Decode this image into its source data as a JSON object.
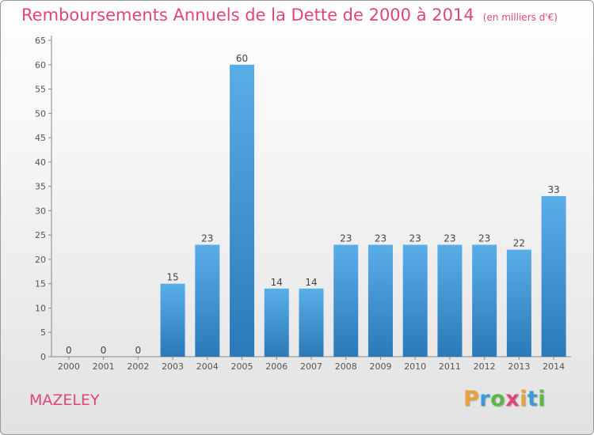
{
  "title": "Remboursements Annuels de la Dette de 2000 à 2014",
  "unit": "(en milliers d'€)",
  "commune": "MAZELEY",
  "logo": {
    "letters": [
      {
        "ch": "P",
        "color": "#e8a23a"
      },
      {
        "ch": "r",
        "color": "#3c9ad6"
      },
      {
        "ch": "o",
        "color": "#5cb84a"
      },
      {
        "ch": "x",
        "color": "#e0457a"
      },
      {
        "ch": "i",
        "color": "#e8a23a"
      },
      {
        "ch": "t",
        "color": "#3c9ad6"
      },
      {
        "ch": "i",
        "color": "#5cb84a"
      }
    ]
  },
  "chart_data": {
    "type": "bar",
    "categories": [
      "2000",
      "2001",
      "2002",
      "2003",
      "2004",
      "2005",
      "2006",
      "2007",
      "2008",
      "2009",
      "2010",
      "2011",
      "2012",
      "2013",
      "2014"
    ],
    "values": [
      0,
      0,
      0,
      15,
      23,
      60,
      14,
      14,
      23,
      23,
      23,
      23,
      23,
      22,
      33
    ],
    "ylim": [
      0,
      65
    ],
    "yticks": [
      0,
      5,
      10,
      15,
      20,
      25,
      30,
      35,
      40,
      45,
      50,
      55,
      60,
      65
    ],
    "grid": false,
    "bar_color_top": "#5aaee8",
    "bar_color_bottom": "#2b79b8",
    "label_color": "#444444"
  }
}
